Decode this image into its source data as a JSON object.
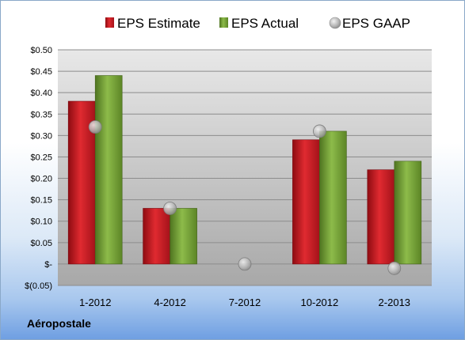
{
  "company": "Aéropostale",
  "colors": {
    "estimate": "#c0141c",
    "actual": "#6e9a2c",
    "gaap": "#c4c4c4"
  },
  "chart_data": {
    "type": "bar",
    "categories": [
      "1-2012",
      "4-2012",
      "7-2012",
      "10-2012",
      "2-2013"
    ],
    "series": [
      {
        "name": "EPS Estimate",
        "type": "bar",
        "values": [
          0.38,
          0.13,
          null,
          0.29,
          0.22
        ]
      },
      {
        "name": "EPS Actual",
        "type": "bar",
        "values": [
          0.44,
          0.13,
          null,
          0.31,
          0.24
        ]
      },
      {
        "name": "EPS GAAP",
        "type": "scatter",
        "values": [
          0.32,
          0.13,
          0.0,
          0.31,
          -0.01
        ]
      }
    ],
    "yticks": [
      "$0.50",
      "$0.45",
      "$0.40",
      "$0.35",
      "$0.30",
      "$0.25",
      "$0.20",
      "$0.15",
      "$0.10",
      "$0.05",
      "$-",
      "$(0.05)"
    ],
    "ylim": [
      -0.05,
      0.5
    ],
    "ystep": 0.05,
    "grid": true,
    "legend_position": "top"
  }
}
